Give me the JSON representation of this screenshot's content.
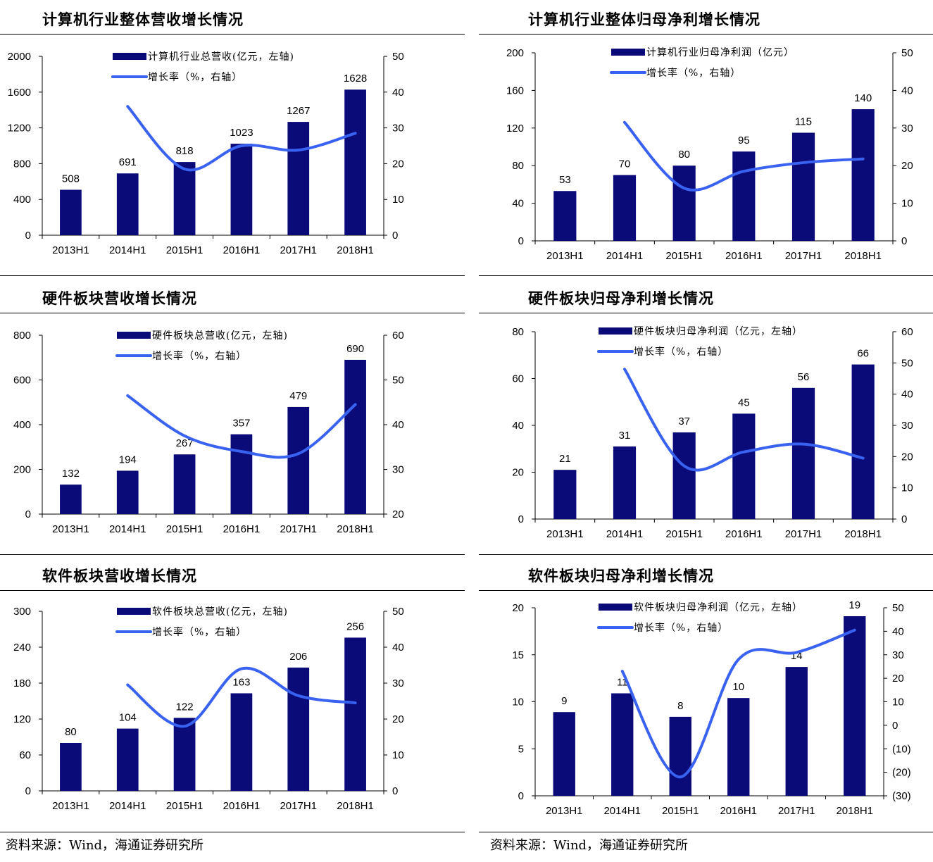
{
  "colors": {
    "bar": "#0a0a78",
    "line": "#3a62f0",
    "rule": "#000000",
    "negative": "#c00000"
  },
  "footer": {
    "left": "资料来源：Wind，海通证券研究所",
    "right": "资料来源：Wind，海通证券研究所"
  },
  "chart_data": [
    {
      "type": "bar",
      "title": "计算机行业整体营收增长情况",
      "categories": [
        "2013H1",
        "2014H1",
        "2015H1",
        "2016H1",
        "2017H1",
        "2018H1"
      ],
      "series": [
        {
          "name": "计算机行业总营收(亿元，左轴)",
          "type": "bar",
          "axis": "left",
          "values": [
            508,
            691,
            818,
            1023,
            1267,
            1628
          ],
          "labels": [
            "508",
            "691",
            "818",
            "1023",
            "1267",
            "1628"
          ]
        },
        {
          "name": "增长率（%，右轴）",
          "type": "line",
          "axis": "right",
          "values": [
            null,
            36,
            18.5,
            25,
            23.8,
            28.5
          ]
        }
      ],
      "y_left": {
        "min": 0,
        "max": 2000,
        "ticks": [
          0,
          400,
          800,
          1200,
          1600,
          2000
        ]
      },
      "y_right": {
        "min": 0,
        "max": 50,
        "ticks": [
          0,
          10,
          20,
          30,
          40,
          50
        ]
      },
      "legend_position": "top-left"
    },
    {
      "type": "bar",
      "title": "计算机行业整体归母净利增长情况",
      "categories": [
        "2013H1",
        "2014H1",
        "2015H1",
        "2016H1",
        "2017H1",
        "2018H1"
      ],
      "series": [
        {
          "name": "计算机行业归母净利润（亿元）",
          "type": "bar",
          "axis": "left",
          "values": [
            53,
            70,
            80,
            95,
            115,
            140
          ],
          "labels": [
            "53",
            "70",
            "80",
            "95",
            "115",
            "140"
          ]
        },
        {
          "name": "增长率（%，右轴）",
          "type": "line",
          "axis": "right",
          "values": [
            null,
            31.5,
            14,
            18.5,
            20.8,
            21.8
          ]
        }
      ],
      "y_left": {
        "min": 0,
        "max": 200,
        "ticks": [
          0,
          40,
          80,
          120,
          160,
          200
        ]
      },
      "y_right": {
        "min": 0,
        "max": 50,
        "ticks": [
          0,
          10,
          20,
          30,
          40,
          50
        ]
      },
      "legend_position": "top-left"
    },
    {
      "type": "bar",
      "title": "硬件板块营收增长情况",
      "categories": [
        "2013H1",
        "2014H1",
        "2015H1",
        "2016H1",
        "2017H1",
        "2018H1"
      ],
      "series": [
        {
          "name": "硬件板块总营收(亿元，左轴)",
          "type": "bar",
          "axis": "left",
          "values": [
            132,
            194,
            267,
            357,
            479,
            690
          ],
          "labels": [
            "132",
            "194",
            "267",
            "357",
            "479",
            "690"
          ]
        },
        {
          "name": "增长率（%，右轴）",
          "type": "line",
          "axis": "right",
          "values": [
            null,
            46.5,
            37.5,
            34,
            33.5,
            44.5
          ]
        }
      ],
      "y_left": {
        "min": 0,
        "max": 800,
        "ticks": [
          0,
          200,
          400,
          600,
          800
        ]
      },
      "y_right": {
        "min": 20,
        "max": 60,
        "ticks": [
          20,
          30,
          40,
          50,
          60
        ]
      },
      "legend_position": "top-left"
    },
    {
      "type": "bar",
      "title": "硬件板块归母净利增长情况",
      "categories": [
        "2013H1",
        "2014H1",
        "2015H1",
        "2016H1",
        "2017H1",
        "2018H1"
      ],
      "series": [
        {
          "name": "硬件板块归母净利润（亿元，左轴）",
          "type": "bar",
          "axis": "left",
          "values": [
            21,
            31,
            37,
            45,
            56,
            66
          ],
          "labels": [
            "21",
            "31",
            "37",
            "45",
            "56",
            "66"
          ]
        },
        {
          "name": "增长率（%，右轴）",
          "type": "line",
          "axis": "right",
          "values": [
            null,
            48,
            17,
            21.5,
            24,
            19.5
          ]
        }
      ],
      "y_left": {
        "min": 0,
        "max": 80,
        "ticks": [
          0,
          20,
          40,
          60,
          80
        ]
      },
      "y_right": {
        "min": 0,
        "max": 60,
        "ticks": [
          0,
          10,
          20,
          30,
          40,
          50,
          60
        ]
      },
      "legend_position": "top-left"
    },
    {
      "type": "bar",
      "title": "软件板块营收增长情况",
      "categories": [
        "2013H1",
        "2014H1",
        "2015H1",
        "2016H1",
        "2017H1",
        "2018H1"
      ],
      "series": [
        {
          "name": "软件板块总营收(亿元，左轴)",
          "type": "bar",
          "axis": "left",
          "values": [
            80,
            104,
            122,
            163,
            206,
            256
          ],
          "labels": [
            "80",
            "104",
            "122",
            "163",
            "206",
            "256"
          ]
        },
        {
          "name": "增长率（%，右轴）",
          "type": "line",
          "axis": "right",
          "values": [
            null,
            29.5,
            18,
            34,
            26.5,
            24.5
          ]
        }
      ],
      "y_left": {
        "min": 0,
        "max": 300,
        "ticks": [
          0,
          60,
          120,
          180,
          240,
          300
        ]
      },
      "y_right": {
        "min": 0,
        "max": 50,
        "ticks": [
          0,
          10,
          20,
          30,
          40,
          50
        ]
      },
      "legend_position": "top-left"
    },
    {
      "type": "bar",
      "title": "软件板块归母净利增长情况",
      "categories": [
        "2013H1",
        "2014H1",
        "2015H1",
        "2016H1",
        "2017H1",
        "2018H1"
      ],
      "series": [
        {
          "name": "软件板块归母净利润（亿元，左轴）",
          "type": "bar",
          "axis": "left",
          "values": [
            8.9,
            10.9,
            8.4,
            10.4,
            13.7,
            19.1
          ],
          "labels": [
            "9",
            "11",
            "8",
            "10",
            "14",
            "19"
          ]
        },
        {
          "name": "增长率（%，右轴）",
          "type": "line",
          "axis": "right",
          "values": [
            null,
            23,
            -22,
            28,
            31,
            40.5
          ]
        }
      ],
      "y_left": {
        "min": 0,
        "max": 20,
        "ticks": [
          0,
          5,
          10,
          15,
          20
        ]
      },
      "y_right": {
        "min": -30,
        "max": 50,
        "ticks": [
          -30,
          -20,
          -10,
          0,
          10,
          20,
          30,
          40,
          50
        ],
        "tick_labels": [
          "(30)",
          "(20)",
          "(10)",
          "0",
          "10",
          "20",
          "30",
          "40",
          "50"
        ]
      },
      "legend_position": "top-left"
    }
  ]
}
